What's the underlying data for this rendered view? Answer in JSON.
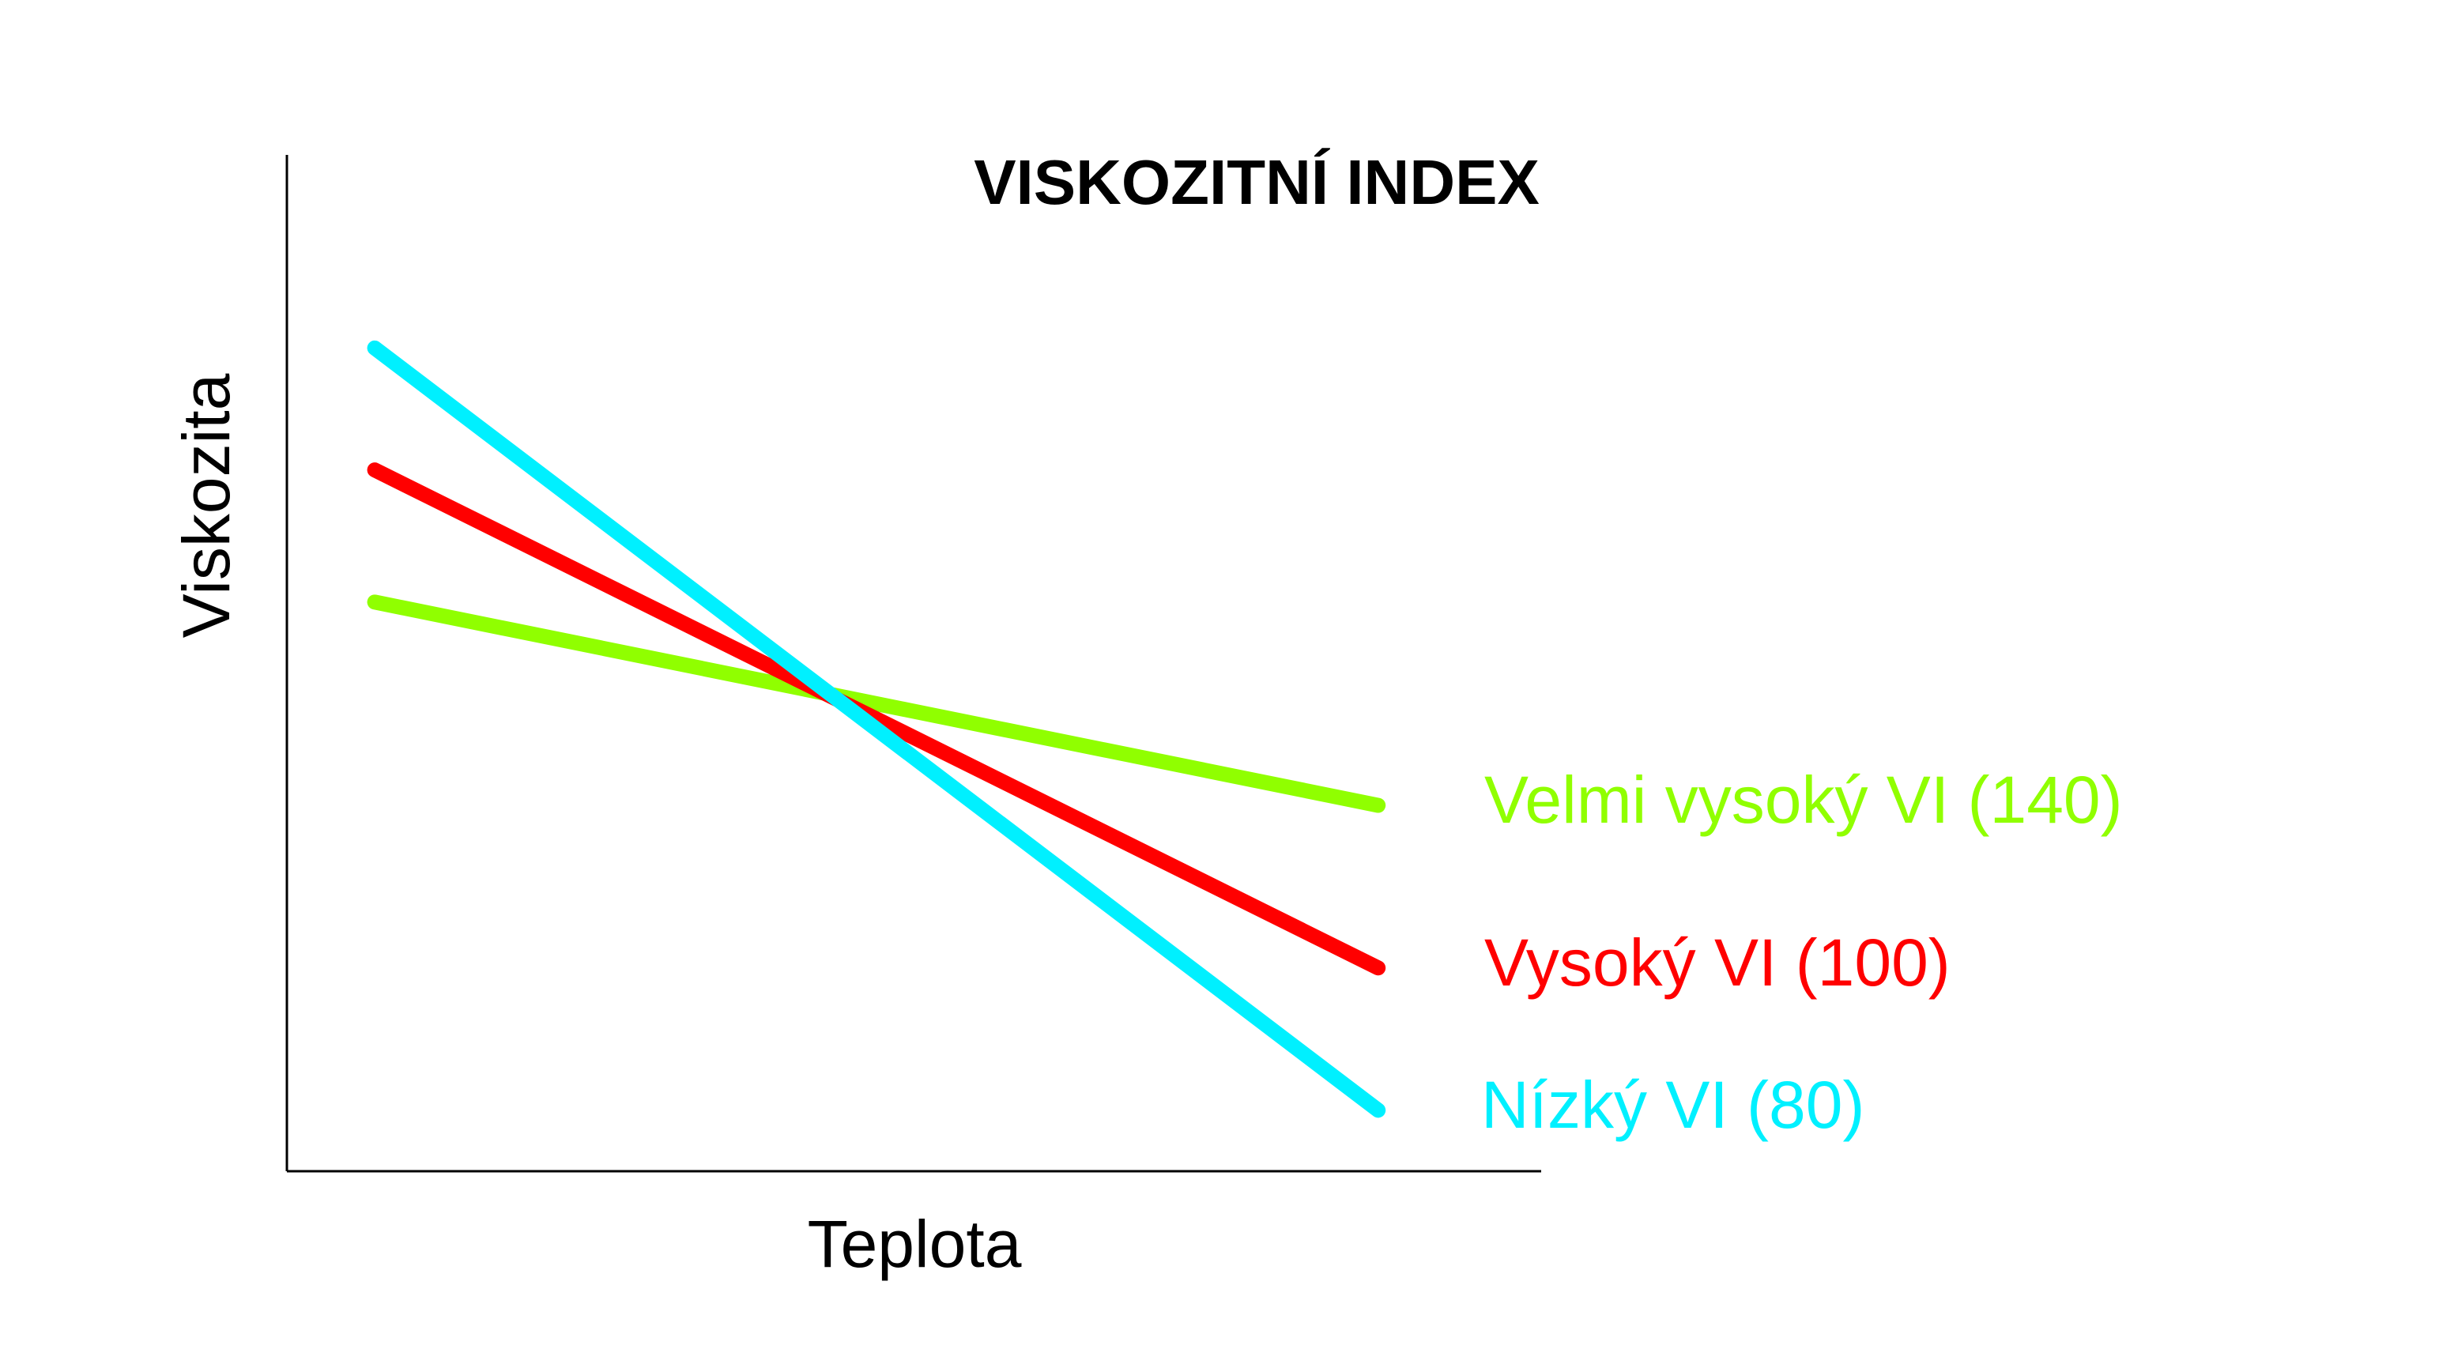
{
  "chart_data": {
    "type": "line",
    "title": "VISKOZITNÍ INDEX",
    "xlabel": "Teplota",
    "ylabel": "Viskozita",
    "grid": false,
    "legend_placement": "right",
    "xlim": [
      0,
      1
    ],
    "ylim": [
      0,
      1
    ],
    "series": [
      {
        "name": "Velmi vysoký VI (140)",
        "color": "#90ff00",
        "x": [
          0.07,
          0.87
        ],
        "y": [
          0.56,
          0.36
        ]
      },
      {
        "name": "Vysoký VI (100)",
        "color": "#ff0000",
        "x": [
          0.07,
          0.87
        ],
        "y": [
          0.69,
          0.2
        ]
      },
      {
        "name": "Nízký VI (80)",
        "color": "#00f0ff",
        "x": [
          0.07,
          0.87
        ],
        "y": [
          0.81,
          0.06
        ]
      }
    ]
  }
}
